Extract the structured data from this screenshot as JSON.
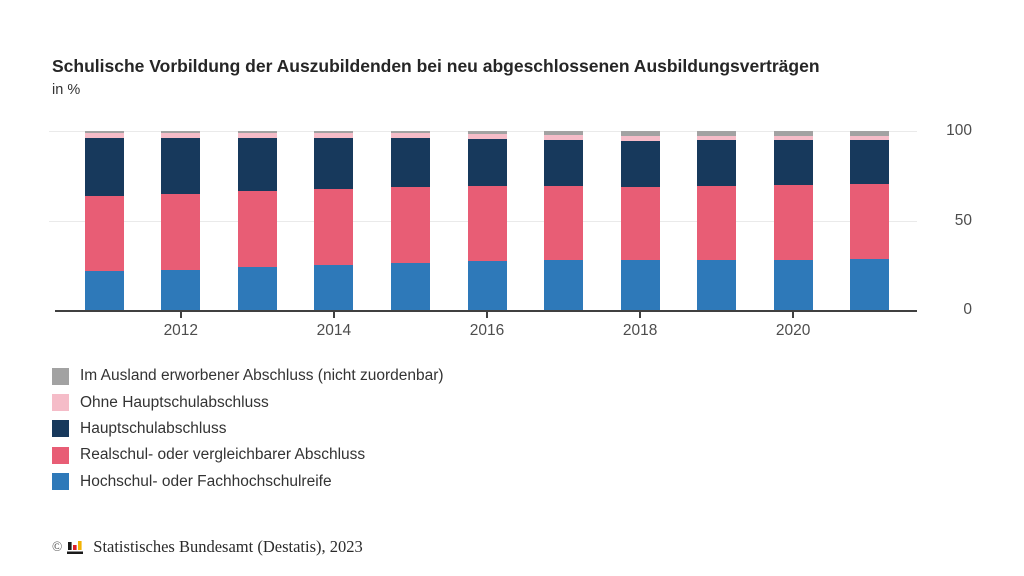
{
  "header": {
    "title": "Schulische Vorbildung der Auszubildenden bei neu abgeschlossenen Ausbildungsverträgen",
    "subtitle": "in %"
  },
  "chart_data": {
    "type": "bar",
    "stacked": true,
    "unit": "%",
    "title": "Schulische Vorbildung der Auszubildenden bei neu abgeschlossenen Ausbildungsverträgen",
    "ylabel": "in %",
    "ylim": [
      0,
      100
    ],
    "yticks": [
      "100",
      "50",
      "0"
    ],
    "grid": true,
    "legend_position": "bottom-left",
    "x": [
      2011,
      2012,
      2013,
      2014,
      2015,
      2016,
      2017,
      2018,
      2019,
      2020,
      2021
    ],
    "xticks": [
      "2012",
      "2014",
      "2016",
      "2018",
      "2020"
    ],
    "series": [
      {
        "name": "Hochschul- oder Fachhochschulreife",
        "color": "#2e79b9",
        "values": [
          21.9,
          22.6,
          24.0,
          25.2,
          26.3,
          27.2,
          27.9,
          28.0,
          28.1,
          28.0,
          28.6
        ]
      },
      {
        "name": "Realschul- oder vergleichbarer Abschluss",
        "color": "#e85d75",
        "values": [
          42.0,
          42.0,
          42.2,
          42.3,
          42.4,
          42.3,
          41.5,
          40.9,
          41.2,
          41.8,
          41.9
        ]
      },
      {
        "name": "Hauptschulabschluss",
        "color": "#17395c",
        "values": [
          32.1,
          31.3,
          29.7,
          28.4,
          27.2,
          26.0,
          25.8,
          25.7,
          25.4,
          25.1,
          24.4
        ]
      },
      {
        "name": "Ohne Hauptschulabschluss",
        "color": "#f5bcc8",
        "values": [
          2.9,
          3.0,
          3.0,
          3.0,
          3.0,
          2.9,
          2.7,
          2.8,
          2.7,
          2.5,
          2.4
        ]
      },
      {
        "name": "Im Ausland erworbener Abschluss (nicht zuordenbar)",
        "color": "#a2a2a2",
        "values": [
          1.1,
          1.1,
          1.1,
          1.1,
          1.1,
          1.6,
          2.1,
          2.6,
          2.6,
          2.6,
          2.7
        ]
      }
    ]
  },
  "footer": {
    "copyright_symbol": "©",
    "source": "Statistisches Bundesamt (Destatis), 2023",
    "logo_icon": "destatis-bar-chart-icon",
    "logo_colors": {
      "black": "#1a1a1a",
      "red": "#dd1f26",
      "gold": "#f2b305"
    }
  }
}
